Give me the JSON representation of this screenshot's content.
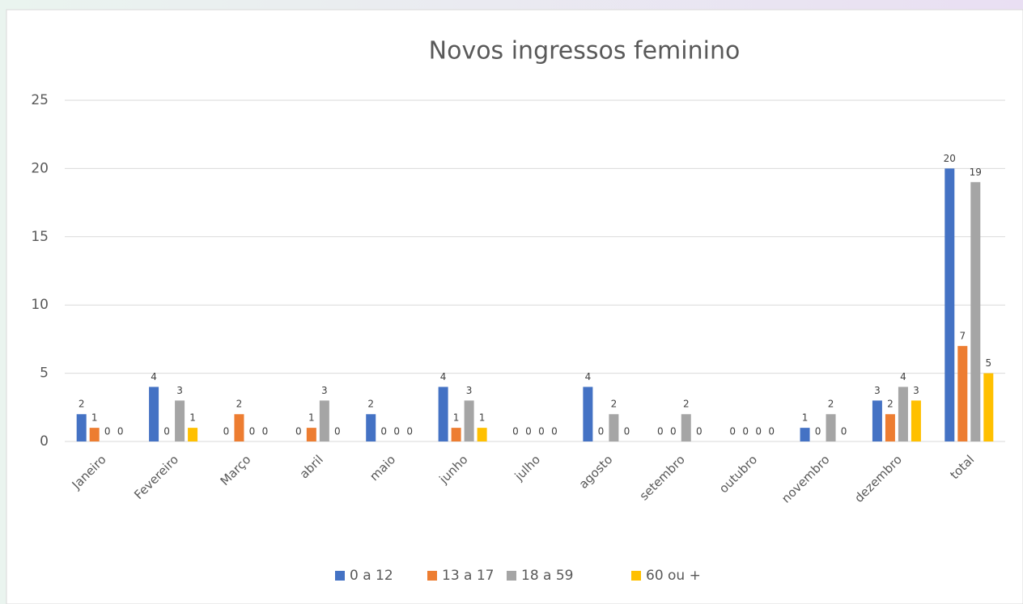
{
  "chart_data": {
    "type": "bar",
    "title": "Novos ingressos feminino",
    "categories": [
      "Janeiro",
      "Fevereiro",
      "Março",
      "abril",
      "maio",
      "junho",
      "julho",
      "agosto",
      "setembro",
      "outubro",
      "novembro",
      "dezembro",
      "total"
    ],
    "series": [
      {
        "name": "0 a 12",
        "color": "#4472c4",
        "values": [
          2,
          4,
          0,
          0,
          2,
          4,
          0,
          4,
          0,
          0,
          1,
          3,
          20
        ]
      },
      {
        "name": "13 a 17",
        "color": "#ed7d31",
        "values": [
          1,
          0,
          2,
          1,
          0,
          1,
          0,
          0,
          0,
          0,
          0,
          2,
          7
        ]
      },
      {
        "name": "18 a 59",
        "color": "#a5a5a5",
        "values": [
          0,
          3,
          0,
          3,
          0,
          3,
          0,
          2,
          2,
          0,
          2,
          4,
          19
        ]
      },
      {
        "name": "60 ou +",
        "color": "#ffc000",
        "values": [
          0,
          1,
          0,
          0,
          0,
          1,
          0,
          0,
          0,
          0,
          0,
          3,
          5
        ]
      }
    ],
    "ylim": [
      0,
      25
    ],
    "yticks": [
      0,
      5,
      10,
      15,
      20,
      25
    ],
    "grid": true,
    "legend": "bottom"
  }
}
